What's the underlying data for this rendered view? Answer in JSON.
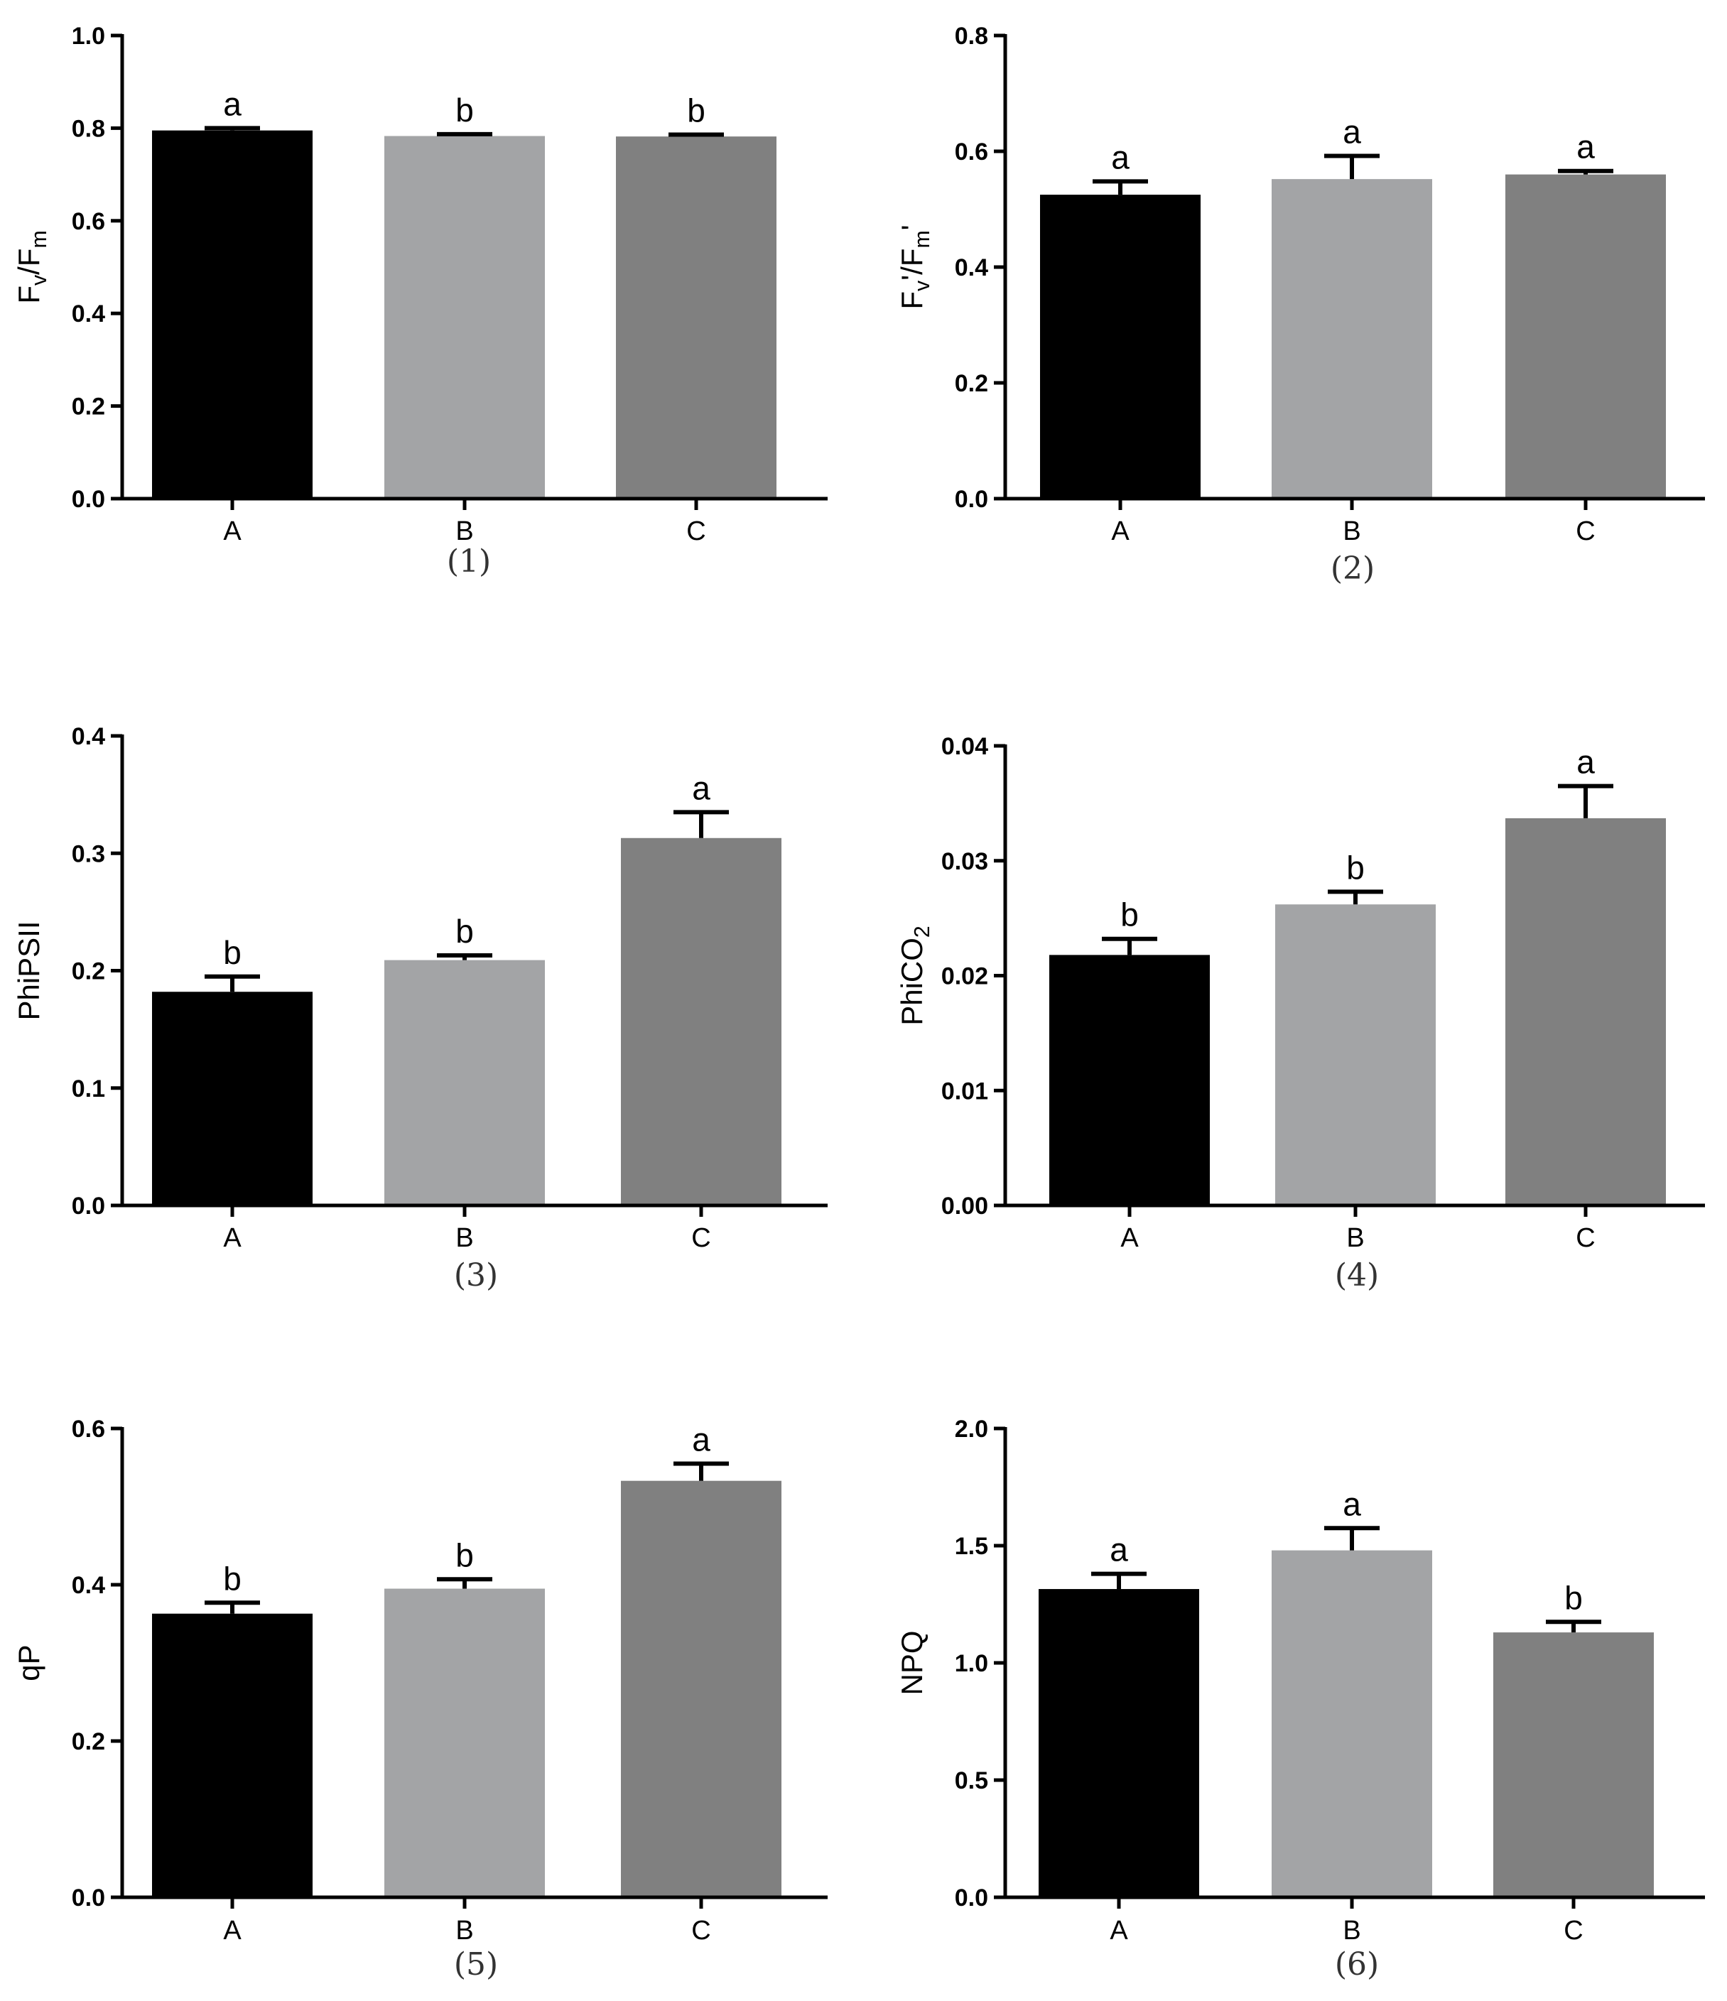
{
  "chart_data": [
    {
      "type": "bar",
      "panel_label": "(1)",
      "ylabel": {
        "main": "F",
        "sub1": "v",
        "mid": "/F",
        "sub2": "m",
        "suffix": ""
      },
      "categories": [
        "A",
        "B",
        "C"
      ],
      "values": [
        0.795,
        0.783,
        0.782
      ],
      "errors": [
        0.005,
        0.004,
        0.004
      ],
      "significance": [
        "a",
        "b",
        "b"
      ],
      "ylim": [
        0,
        1.0
      ],
      "yticks": [
        "0.0",
        "0.2",
        "0.4",
        "0.6",
        "0.8",
        "1.0"
      ],
      "colors": [
        "#000000",
        "#a3a4a6",
        "#808080"
      ]
    },
    {
      "type": "bar",
      "panel_label": "(2)",
      "ylabel": {
        "main": "F",
        "sub1": "v",
        "mid": "'/F",
        "sub2": "m",
        "suffix": "'"
      },
      "categories": [
        "A",
        "B",
        "C"
      ],
      "values": [
        0.525,
        0.552,
        0.56
      ],
      "errors": [
        0.023,
        0.04,
        0.006
      ],
      "significance": [
        "a",
        "a",
        "a"
      ],
      "ylim": [
        0,
        0.8
      ],
      "yticks": [
        "0.0",
        "0.2",
        "0.4",
        "0.6",
        "0.8"
      ],
      "colors": [
        "#000000",
        "#a3a4a6",
        "#808080"
      ]
    },
    {
      "type": "bar",
      "panel_label": "(3)",
      "ylabel": {
        "main": "PhiPSII",
        "sub1": "",
        "mid": "",
        "sub2": "",
        "suffix": ""
      },
      "categories": [
        "A",
        "B",
        "C"
      ],
      "values": [
        0.182,
        0.209,
        0.313
      ],
      "errors": [
        0.013,
        0.004,
        0.022
      ],
      "significance": [
        "b",
        "b",
        "a"
      ],
      "ylim": [
        0,
        0.4
      ],
      "yticks": [
        "0.0",
        "0.1",
        "0.2",
        "0.3",
        "0.4"
      ],
      "colors": [
        "#000000",
        "#a3a4a6",
        "#808080"
      ]
    },
    {
      "type": "bar",
      "panel_label": "(4)",
      "ylabel": {
        "main": "PhiCO",
        "sub1": "2",
        "mid": "",
        "sub2": "",
        "suffix": ""
      },
      "categories": [
        "A",
        "B",
        "C"
      ],
      "values": [
        0.0218,
        0.0262,
        0.0337
      ],
      "errors": [
        0.0014,
        0.0011,
        0.0028
      ],
      "significance": [
        "b",
        "b",
        "a"
      ],
      "ylim": [
        0,
        0.04
      ],
      "yticks": [
        "0.00",
        "0.01",
        "0.02",
        "0.03",
        "0.04"
      ],
      "colors": [
        "#000000",
        "#a3a4a6",
        "#808080"
      ]
    },
    {
      "type": "bar",
      "panel_label": "(5)",
      "ylabel": {
        "main": "qP",
        "sub1": "",
        "mid": "",
        "sub2": "",
        "suffix": ""
      },
      "categories": [
        "A",
        "B",
        "C"
      ],
      "values": [
        0.363,
        0.395,
        0.533
      ],
      "errors": [
        0.014,
        0.012,
        0.022
      ],
      "significance": [
        "b",
        "b",
        "a"
      ],
      "ylim": [
        0,
        0.6
      ],
      "yticks": [
        "0.0",
        "0.2",
        "0.4",
        "0.6"
      ],
      "colors": [
        "#000000",
        "#a3a4a6",
        "#808080"
      ]
    },
    {
      "type": "bar",
      "panel_label": "(6)",
      "ylabel": {
        "main": "NPQ",
        "sub1": "",
        "mid": "",
        "sub2": "",
        "suffix": ""
      },
      "categories": [
        "A",
        "B",
        "C"
      ],
      "values": [
        1.315,
        1.48,
        1.13
      ],
      "errors": [
        0.065,
        0.095,
        0.045
      ],
      "significance": [
        "a",
        "a",
        "b"
      ],
      "ylim": [
        0,
        2.0
      ],
      "yticks": [
        "0.0",
        "0.5",
        "1.0",
        "1.5",
        "2.0"
      ],
      "colors": [
        "#000000",
        "#a3a4a6",
        "#808080"
      ]
    }
  ]
}
